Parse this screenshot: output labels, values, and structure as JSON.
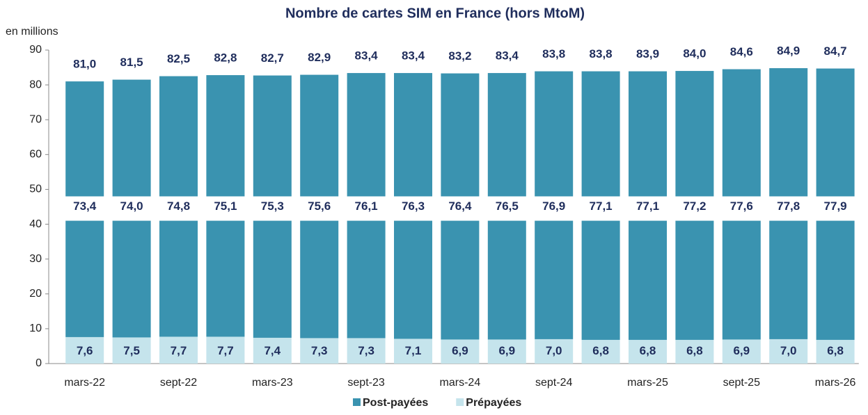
{
  "chart_data": {
    "type": "bar",
    "stacked": true,
    "title": "Nombre de cartes SIM en France (hors MtoM)",
    "y_label": "en millions",
    "categories": [
      "mars-22",
      null,
      "sept-22",
      null,
      "mars-23",
      null,
      "sept-23",
      null,
      "mars-24",
      null,
      "sept-24",
      null,
      "mars-25",
      null,
      "sept-25",
      null,
      "mars-26"
    ],
    "series": [
      {
        "name": "Prépayées",
        "color": "#c5e4ec",
        "values": [
          7.6,
          7.5,
          7.7,
          7.7,
          7.4,
          7.3,
          7.3,
          7.1,
          6.9,
          6.9,
          7.0,
          6.8,
          6.8,
          6.8,
          6.9,
          7.0,
          6.8
        ],
        "value_labels": [
          "7,6",
          "7,5",
          "7,7",
          "7,7",
          "7,4",
          "7,3",
          "7,3",
          "7,1",
          "6,9",
          "6,9",
          "7,0",
          "6,8",
          "6,8",
          "6,8",
          "6,9",
          "7,0",
          "6,8"
        ]
      },
      {
        "name": "Post-payées",
        "color": "#3a93b0",
        "values": [
          73.4,
          74.0,
          74.8,
          75.1,
          75.3,
          75.6,
          76.1,
          76.3,
          76.4,
          76.5,
          76.9,
          77.1,
          77.1,
          77.2,
          77.6,
          77.8,
          77.9
        ],
        "value_labels": [
          "73,4",
          "74,0",
          "74,8",
          "75,1",
          "75,3",
          "75,6",
          "76,1",
          "76,3",
          "76,4",
          "76,5",
          "76,9",
          "77,1",
          "77,1",
          "77,2",
          "77,6",
          "77,8",
          "77,9"
        ]
      }
    ],
    "totals": [
      81.0,
      81.5,
      82.5,
      82.8,
      82.7,
      82.9,
      83.4,
      83.4,
      83.2,
      83.4,
      83.8,
      83.8,
      83.9,
      84.0,
      84.6,
      84.9,
      84.7
    ],
    "total_labels": [
      "81,0",
      "81,5",
      "82,5",
      "82,8",
      "82,7",
      "82,9",
      "83,4",
      "83,4",
      "83,2",
      "83,4",
      "83,8",
      "83,8",
      "83,9",
      "84,0",
      "84,6",
      "84,9",
      "84,7"
    ],
    "ylim": [
      0,
      90
    ],
    "yticks": [
      0,
      10,
      20,
      30,
      40,
      50,
      60,
      70,
      80,
      90
    ],
    "axis_break": [
      41,
      48
    ],
    "legend": "bottom"
  }
}
